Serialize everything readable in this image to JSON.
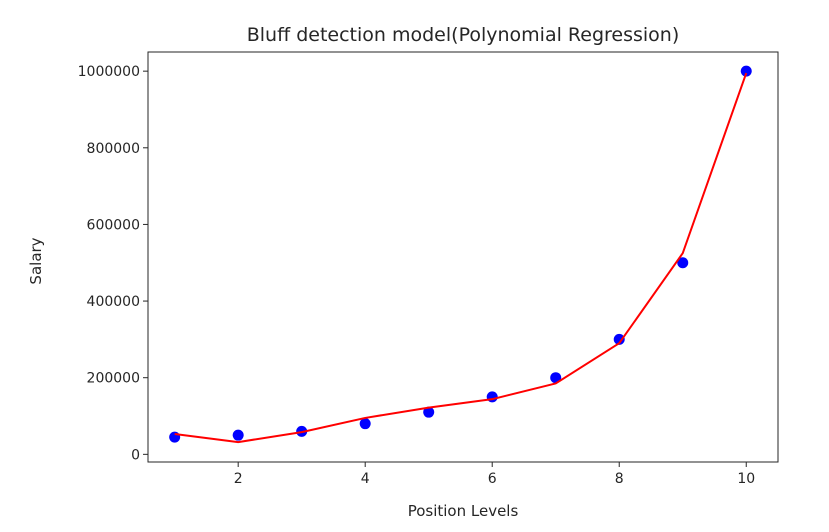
{
  "chart_data": {
    "type": "scatter",
    "title": "Bluff detection model(Polynomial Regression)",
    "xlabel": "Position Levels",
    "ylabel": "Salary",
    "xlim": [
      0.58,
      10.5
    ],
    "ylim": [
      -20000,
      1050000
    ],
    "xticks": [
      2,
      4,
      6,
      8,
      10
    ],
    "yticks": [
      0,
      200000,
      400000,
      600000,
      800000,
      1000000
    ],
    "grid": false,
    "series": [
      {
        "kind": "scatter",
        "color": "#0000ff",
        "x": [
          1,
          2,
          3,
          4,
          5,
          6,
          7,
          8,
          9,
          10
        ],
        "y": [
          45000,
          50000,
          60000,
          80000,
          110000,
          150000,
          200000,
          300000,
          500000,
          1000000
        ]
      },
      {
        "kind": "line",
        "color": "#ff0000",
        "x": [
          1,
          2,
          3,
          4,
          5,
          6,
          7,
          8,
          9,
          10
        ],
        "y": [
          53000,
          32000,
          58000,
          95000,
          122000,
          144000,
          185000,
          290000,
          525000,
          995000
        ]
      }
    ]
  }
}
